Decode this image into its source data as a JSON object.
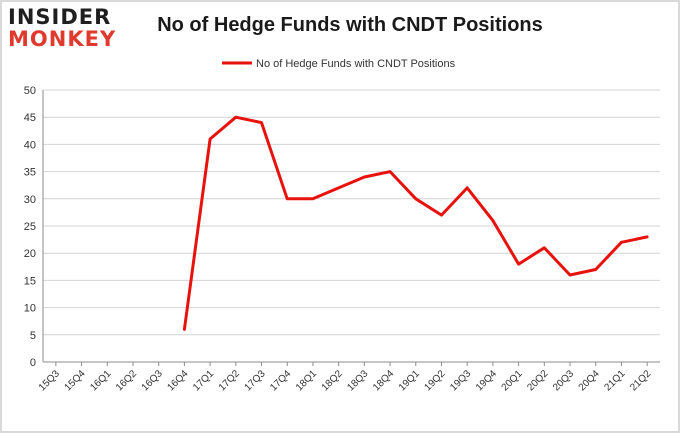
{
  "brand": {
    "logo_line_1": "INSIDER",
    "logo_line_2": "MONKEY"
  },
  "chart_data": {
    "type": "line",
    "title": "No of Hedge Funds with CNDT Positions",
    "xlabel": "",
    "ylabel": "",
    "ylim": [
      0,
      50
    ],
    "yticks": [
      0,
      5,
      10,
      15,
      20,
      25,
      30,
      35,
      40,
      45,
      50
    ],
    "grid": true,
    "legend": "top-center",
    "categories": [
      "15Q3",
      "15Q4",
      "16Q1",
      "16Q2",
      "16Q3",
      "16Q4",
      "17Q1",
      "17Q2",
      "17Q3",
      "17Q4",
      "18Q1",
      "18Q2",
      "18Q3",
      "18Q4",
      "19Q1",
      "19Q2",
      "19Q3",
      "19Q4",
      "20Q1",
      "20Q2",
      "20Q3",
      "20Q4",
      "21Q1",
      "21Q2"
    ],
    "series": [
      {
        "name": "No of Hedge Funds with CNDT Positions",
        "color": "#e8120c",
        "values": [
          null,
          null,
          null,
          null,
          null,
          6,
          41,
          45,
          44,
          30,
          30,
          32,
          34,
          35,
          30,
          27,
          32,
          26,
          18,
          21,
          16,
          17,
          22,
          23
        ]
      }
    ]
  }
}
